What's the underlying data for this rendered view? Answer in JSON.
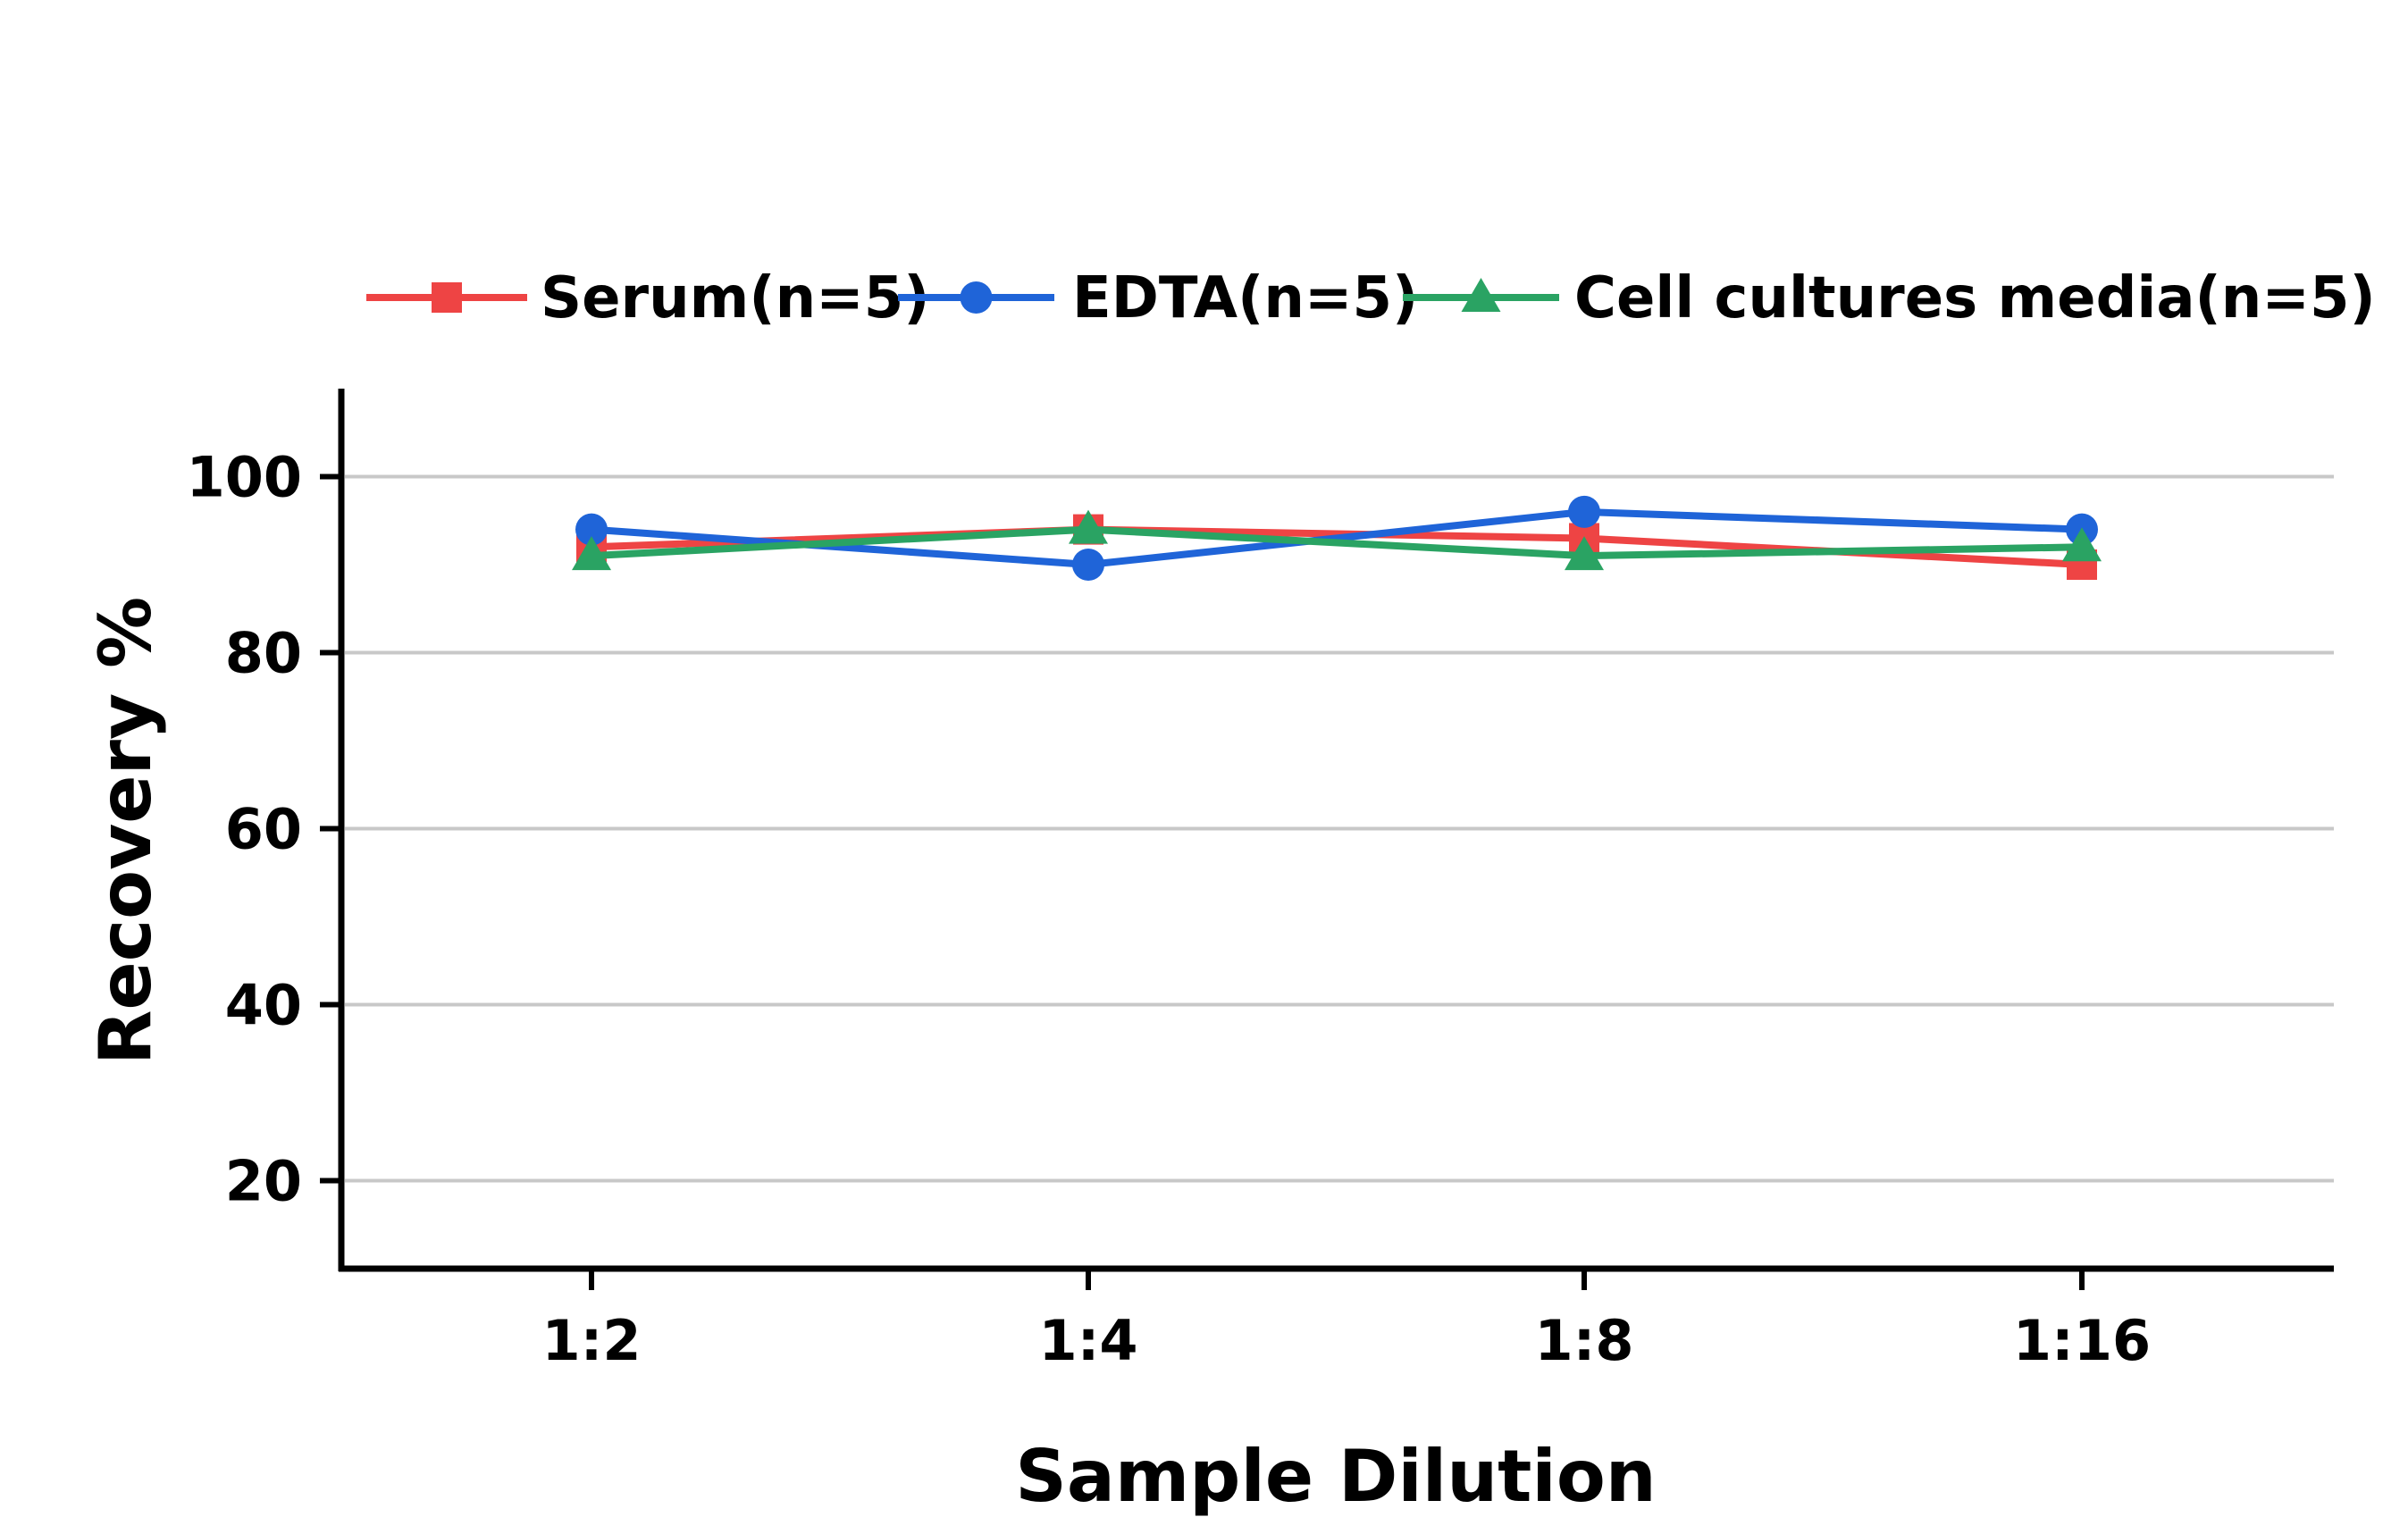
{
  "chart_data": {
    "type": "line",
    "categories": [
      "1:2",
      "1:4",
      "1:8",
      "1:16"
    ],
    "series": [
      {
        "name": "Serum(n=5)",
        "values": [
          92,
          94,
          93,
          90
        ],
        "color": "#ee4444",
        "marker": "square"
      },
      {
        "name": "EDTA(n=5)",
        "values": [
          94,
          90,
          96,
          94
        ],
        "color": "#1f64d8",
        "marker": "circle"
      },
      {
        "name": "Cell cultures media(n=5)",
        "values": [
          91,
          94,
          91,
          92
        ],
        "color": "#2aa363",
        "marker": "triangle"
      }
    ],
    "xlabel": "Sample Dilution",
    "ylabel": "Recovery %",
    "ylim": [
      10,
      110
    ],
    "yticks": [
      20,
      40,
      60,
      80,
      100
    ],
    "grid": true,
    "legend_position": "top"
  }
}
